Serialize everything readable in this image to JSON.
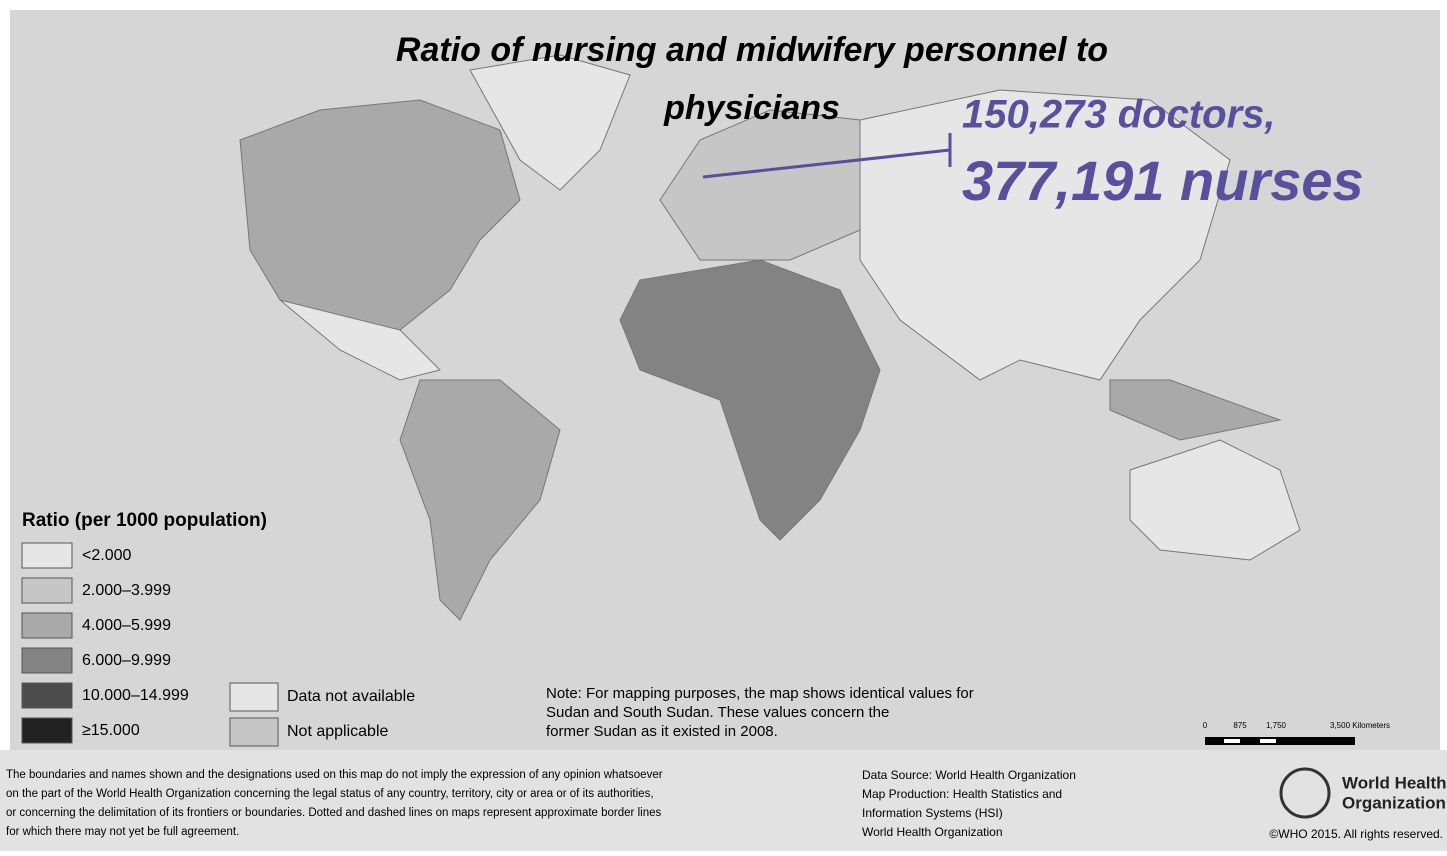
{
  "header": {
    "title_lines": [
      "Ratio of nursing and midwifery personnel to",
      "physicians"
    ]
  },
  "annotation": {
    "doctors": "150,273 doctors,",
    "nurses": "377,191 nurses"
  },
  "legend": {
    "title": "Ratio (per 1000 population)",
    "items": [
      {
        "label": "<2.000",
        "color": "#e6e6e6"
      },
      {
        "label": "2.000–3.999",
        "color": "#c6c6c6"
      },
      {
        "label": "4.000–5.999",
        "color": "#a9a9a9"
      },
      {
        "label": "6.000–9.999",
        "color": "#838383"
      },
      {
        "label": "10.000–14.999",
        "color": "#4c4c4c"
      },
      {
        "label": "≥15.000",
        "color": "#222222"
      }
    ],
    "extra": [
      {
        "label": "Data not available",
        "color": "#e6e6e6"
      },
      {
        "label": "Not applicable",
        "color": "#c6c6c6"
      }
    ]
  },
  "note": [
    "Note: For mapping purposes, the map shows identical values for",
    "Sudan and South Sudan. These values concern the",
    "former Sudan as it existed in 2008."
  ],
  "scale": [
    "0",
    "875",
    "1,750",
    "3,500 Kilometers"
  ],
  "disclaimer": [
    "The boundaries and names shown and the designations used on this map do not imply the expression of any opinion whatsoever",
    "on the part of the World Health Organization concerning the legal status of any country, territory, city or area or of its authorities,",
    "or concerning the delimitation of its frontiers or boundaries. Dotted and dashed lines on maps represent approximate border lines",
    "for which there may not yet be full agreement."
  ],
  "source": [
    "Data Source: World Health Organization",
    "Map Production: Health Statistics and",
    "Information Systems (HSI)",
    "World Health Organization"
  ],
  "logo": [
    "World Health",
    "Organization"
  ],
  "copyright": "©WHO 2015. All rights reserved."
}
